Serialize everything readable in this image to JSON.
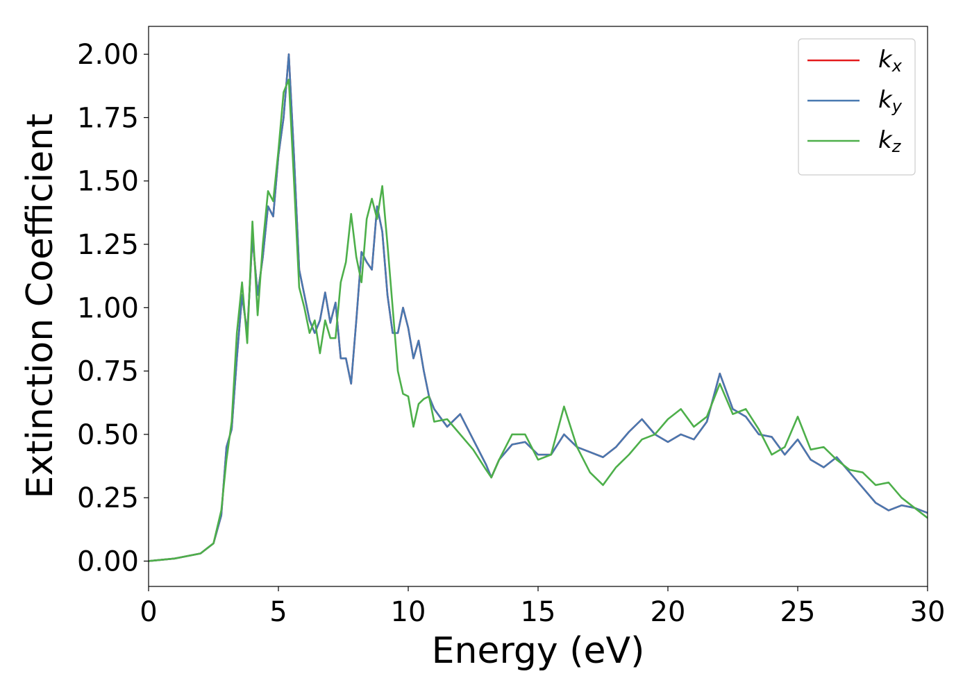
{
  "chart_data": {
    "type": "line",
    "xlabel": "Energy (eV)",
    "ylabel": "Extinction Coefficient",
    "x": [
      0,
      1,
      2,
      2.5,
      2.8,
      3.0,
      3.2,
      3.4,
      3.6,
      3.8,
      4.0,
      4.2,
      4.4,
      4.6,
      4.8,
      5.0,
      5.2,
      5.4,
      5.6,
      5.8,
      6.0,
      6.2,
      6.4,
      6.6,
      6.8,
      7.0,
      7.2,
      7.4,
      7.6,
      7.8,
      8.0,
      8.2,
      8.4,
      8.6,
      8.8,
      9.0,
      9.2,
      9.4,
      9.6,
      9.8,
      10.0,
      10.2,
      10.4,
      10.6,
      10.8,
      11.0,
      11.5,
      12,
      12.5,
      13,
      13.2,
      13.5,
      14,
      14.5,
      15,
      15.5,
      16,
      16.5,
      17,
      17.5,
      18,
      18.5,
      19,
      19.5,
      20,
      20.5,
      21,
      21.5,
      22,
      22.5,
      23,
      23.5,
      24,
      24.5,
      25,
      25.5,
      26,
      26.5,
      27,
      27.5,
      28,
      28.5,
      29,
      29.5,
      30
    ],
    "series": [
      {
        "name": "kx",
        "color": "#e41a1c",
        "values": [
          0,
          0.01,
          0.03,
          0.07,
          0.18,
          0.45,
          0.52,
          0.8,
          1.05,
          0.9,
          1.28,
          1.05,
          1.2,
          1.4,
          1.36,
          1.6,
          1.75,
          2.0,
          1.6,
          1.15,
          1.05,
          0.95,
          0.9,
          0.95,
          1.06,
          0.94,
          1.02,
          0.8,
          0.8,
          0.7,
          0.95,
          1.22,
          1.18,
          1.15,
          1.4,
          1.3,
          1.05,
          0.9,
          0.9,
          1.0,
          0.92,
          0.8,
          0.87,
          0.75,
          0.65,
          0.6,
          0.53,
          0.58,
          0.48,
          0.38,
          0.33,
          0.4,
          0.46,
          0.47,
          0.42,
          0.42,
          0.5,
          0.45,
          0.43,
          0.41,
          0.45,
          0.51,
          0.56,
          0.5,
          0.47,
          0.5,
          0.48,
          0.55,
          0.74,
          0.6,
          0.57,
          0.5,
          0.49,
          0.42,
          0.48,
          0.4,
          0.37,
          0.41,
          0.35,
          0.29,
          0.23,
          0.2,
          0.22,
          0.21,
          0.19
        ]
      },
      {
        "name": "ky",
        "color": "#4878b0",
        "values": [
          0,
          0.01,
          0.03,
          0.07,
          0.18,
          0.45,
          0.52,
          0.8,
          1.05,
          0.9,
          1.28,
          1.05,
          1.2,
          1.4,
          1.36,
          1.6,
          1.75,
          2.0,
          1.6,
          1.15,
          1.05,
          0.95,
          0.9,
          0.95,
          1.06,
          0.94,
          1.02,
          0.8,
          0.8,
          0.7,
          0.95,
          1.22,
          1.18,
          1.15,
          1.4,
          1.3,
          1.05,
          0.9,
          0.9,
          1.0,
          0.92,
          0.8,
          0.87,
          0.75,
          0.65,
          0.6,
          0.53,
          0.58,
          0.48,
          0.38,
          0.33,
          0.4,
          0.46,
          0.47,
          0.42,
          0.42,
          0.5,
          0.45,
          0.43,
          0.41,
          0.45,
          0.51,
          0.56,
          0.5,
          0.47,
          0.5,
          0.48,
          0.55,
          0.74,
          0.6,
          0.57,
          0.5,
          0.49,
          0.42,
          0.48,
          0.4,
          0.37,
          0.41,
          0.35,
          0.29,
          0.23,
          0.2,
          0.22,
          0.21,
          0.19
        ]
      },
      {
        "name": "kz",
        "color": "#4daf4a",
        "values": [
          0,
          0.01,
          0.03,
          0.07,
          0.2,
          0.4,
          0.55,
          0.9,
          1.1,
          0.86,
          1.34,
          0.97,
          1.25,
          1.46,
          1.42,
          1.62,
          1.85,
          1.9,
          1.5,
          1.08,
          1.0,
          0.9,
          0.95,
          0.82,
          0.95,
          0.88,
          0.88,
          1.1,
          1.18,
          1.37,
          1.2,
          1.1,
          1.35,
          1.43,
          1.35,
          1.48,
          1.25,
          1.0,
          0.75,
          0.66,
          0.65,
          0.53,
          0.62,
          0.64,
          0.65,
          0.55,
          0.56,
          0.5,
          0.44,
          0.36,
          0.33,
          0.4,
          0.5,
          0.5,
          0.4,
          0.42,
          0.61,
          0.45,
          0.35,
          0.3,
          0.37,
          0.42,
          0.48,
          0.5,
          0.56,
          0.6,
          0.53,
          0.57,
          0.7,
          0.58,
          0.6,
          0.52,
          0.42,
          0.45,
          0.57,
          0.44,
          0.45,
          0.4,
          0.36,
          0.35,
          0.3,
          0.31,
          0.25,
          0.21,
          0.17
        ]
      }
    ],
    "xlim": [
      0,
      30
    ],
    "xticks": [
      0,
      5,
      10,
      15,
      20,
      25,
      30
    ],
    "ylim": [
      -0.1,
      2.11
    ],
    "yticks": [
      {
        "value": 0,
        "label": "0.00"
      },
      {
        "value": 0.25,
        "label": "0.25"
      },
      {
        "value": 0.5,
        "label": "0.50"
      },
      {
        "value": 0.75,
        "label": "0.75"
      },
      {
        "value": 1,
        "label": "1.00"
      },
      {
        "value": 1.25,
        "label": "1.25"
      },
      {
        "value": 1.5,
        "label": "1.50"
      },
      {
        "value": 1.75,
        "label": "1.75"
      },
      {
        "value": 2,
        "label": "2.00"
      }
    ],
    "legend": "upper right"
  }
}
